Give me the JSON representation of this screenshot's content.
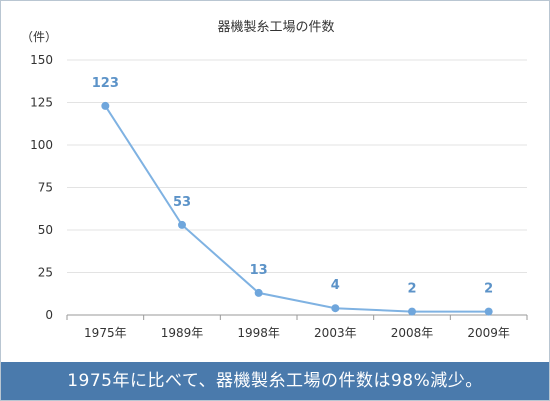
{
  "caption": "1975年に比べて、器機製糸工場の件数は98%減少。",
  "colors": {
    "line": "#7fb2e2",
    "point": "#6fa6dc",
    "label": "#5c93c8",
    "grid": "#e3e3e3",
    "axis": "#9a9a9a",
    "caption_bg": "#4a7aac"
  },
  "chart_data": {
    "type": "line",
    "title": "器機製糸工場の件数",
    "unit_label": "（件）",
    "xlabel": "",
    "ylabel": "",
    "categories": [
      "1975年",
      "1989年",
      "1998年",
      "2003年",
      "2008年",
      "2009年"
    ],
    "values": [
      123,
      53,
      13,
      4,
      2,
      2
    ],
    "ylim": [
      0,
      150
    ],
    "yticks": [
      0,
      25,
      50,
      75,
      100,
      125,
      150
    ],
    "grid": true,
    "legend": "none"
  }
}
